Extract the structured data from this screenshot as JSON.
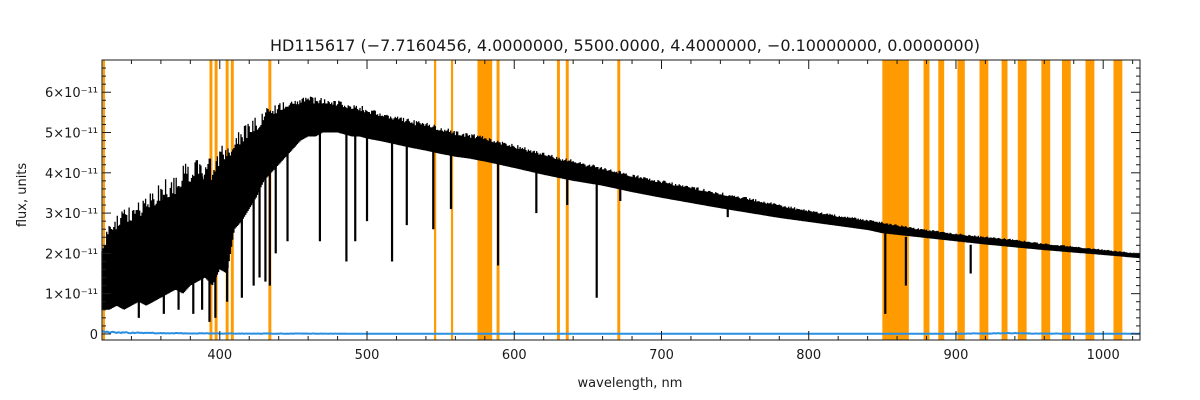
{
  "chart_data": {
    "type": "line",
    "title": "HD115617   (−7.7160456, 4.0000000, 5500.0000, 4.4000000, −0.10000000, 0.0000000)",
    "xlabel": "wavelength, nm",
    "ylabel": "flux, units",
    "xlim": [
      320,
      1025
    ],
    "ylim": [
      -1.5e-12,
      6.8e-11
    ],
    "x_ticks": [
      400,
      500,
      600,
      700,
      800,
      900,
      1000
    ],
    "x_tick_labels": [
      "400",
      "500",
      "600",
      "700",
      "800",
      "900",
      "1000"
    ],
    "y_ticks": [
      0,
      1e-11,
      2e-11,
      3e-11,
      4e-11,
      5e-11,
      6e-11
    ],
    "y_tick_labels": [
      "0",
      "1×10⁻¹¹",
      "2×10⁻¹¹",
      "3×10⁻¹¹",
      "4×10⁻¹¹",
      "5×10⁻¹¹",
      "6×10⁻¹¹"
    ],
    "grid": false,
    "colors": {
      "spectrum": "#000000",
      "error": "#2a8fe0",
      "mask": "#ff9a00",
      "axes": "#1a1a1a"
    },
    "series": [
      {
        "role": "flux",
        "x": [
          320,
          325,
          330,
          335,
          340,
          345,
          350,
          355,
          360,
          365,
          370,
          375,
          380,
          385,
          390,
          395,
          400,
          405,
          410,
          415,
          420,
          425,
          430,
          435,
          440,
          445,
          450,
          455,
          460,
          465,
          470,
          475,
          480,
          485,
          490,
          495,
          500,
          510,
          520,
          530,
          540,
          550,
          560,
          570,
          577,
          580,
          590,
          600,
          620,
          640,
          660,
          680,
          700,
          720,
          740,
          760,
          780,
          800,
          820,
          840,
          850,
          855,
          870,
          880,
          900,
          920,
          940,
          960,
          980,
          1000,
          1025
        ],
        "upper": [
          2.3e-11,
          2.8e-11,
          3e-11,
          3.1e-11,
          3.2e-11,
          3.3e-11,
          3.5e-11,
          3.6e-11,
          3.8e-11,
          3.9e-11,
          4e-11,
          4.2e-11,
          4.3e-11,
          4.4e-11,
          4.3e-11,
          4.4e-11,
          4.6e-11,
          4.9e-11,
          5e-11,
          5.1e-11,
          5.3e-11,
          5.4e-11,
          5.6e-11,
          5.7e-11,
          5.75e-11,
          5.8e-11,
          5.85e-11,
          5.88e-11,
          5.9e-11,
          5.88e-11,
          5.86e-11,
          5.84e-11,
          5.8e-11,
          5.75e-11,
          5.7e-11,
          5.68e-11,
          5.62e-11,
          5.52e-11,
          5.42e-11,
          5.33e-11,
          5.25e-11,
          5.15e-11,
          5.05e-11,
          4.98e-11,
          4.95e-11,
          4.9e-11,
          4.82e-11,
          4.72e-11,
          4.5e-11,
          4.32e-11,
          4.15e-11,
          3.98e-11,
          3.82e-11,
          3.68e-11,
          3.52e-11,
          3.38e-11,
          3.22e-11,
          3.08e-11,
          2.95e-11,
          2.85e-11,
          2.8e-11,
          2.75e-11,
          2.65e-11,
          2.6e-11,
          2.5e-11,
          2.42e-11,
          2.35e-11,
          2.25e-11,
          2.18e-11,
          2.1e-11,
          2e-11
        ],
        "lower": [
          6e-12,
          6e-12,
          7e-12,
          6e-12,
          7e-12,
          8e-12,
          7e-12,
          8e-12,
          9e-12,
          1e-11,
          1.1e-11,
          1e-11,
          1.2e-11,
          1.3e-11,
          1.4e-11,
          1.2e-11,
          1.6e-11,
          1.5e-11,
          2.6e-11,
          2.8e-11,
          3.1e-11,
          3.4e-11,
          3.8e-11,
          4e-11,
          4.2e-11,
          4.4e-11,
          4.6e-11,
          4.8e-11,
          4.9e-11,
          4.9e-11,
          5e-11,
          5e-11,
          5e-11,
          4.95e-11,
          4.9e-11,
          4.9e-11,
          4.85e-11,
          4.78e-11,
          4.7e-11,
          4.62e-11,
          4.55e-11,
          4.47e-11,
          4.4e-11,
          4.35e-11,
          4.3e-11,
          4.28e-11,
          4.2e-11,
          4.12e-11,
          3.95e-11,
          3.8e-11,
          3.68e-11,
          3.52e-11,
          3.38e-11,
          3.25e-11,
          3.12e-11,
          3e-11,
          2.88e-11,
          2.78e-11,
          2.68e-11,
          2.58e-11,
          2.5e-11,
          2.48e-11,
          2.42e-11,
          2.38e-11,
          2.3e-11,
          2.22e-11,
          2.15e-11,
          2.08e-11,
          2.02e-11,
          1.96e-11,
          1.88e-11
        ]
      },
      {
        "role": "absorption_lines",
        "x": [
          345,
          362,
          372,
          382,
          388,
          393,
          397,
          405,
          415,
          423,
          427,
          431,
          434,
          438,
          446,
          468,
          486,
          492,
          500,
          517,
          527,
          545,
          557,
          589,
          615,
          636,
          656,
          672,
          745,
          852,
          866,
          910
        ],
        "y": [
          4e-12,
          5e-12,
          6e-12,
          5e-12,
          6e-12,
          3e-12,
          4e-12,
          8e-12,
          9e-12,
          1.2e-11,
          1.4e-11,
          1.3e-11,
          1.2e-11,
          2e-11,
          2.3e-11,
          2.3e-11,
          1.8e-11,
          2.3e-11,
          2.8e-11,
          1.8e-11,
          2.7e-11,
          2.6e-11,
          3.1e-11,
          1.7e-11,
          3e-11,
          3.2e-11,
          9e-12,
          3.3e-11,
          2.9e-11,
          5e-12,
          1.2e-11,
          1.5e-11
        ]
      },
      {
        "role": "error",
        "x": [
          320,
          330,
          340,
          350,
          360,
          380,
          400,
          420,
          440,
          500,
          600,
          700,
          800,
          900,
          940,
          950,
          1000,
          1025
        ],
        "y": [
          5e-13,
          4e-13,
          3e-13,
          2.5e-13,
          2e-13,
          1.5e-13,
          1e-13,
          1e-13,
          1e-13,
          5e-14,
          5e-14,
          5e-14,
          5e-14,
          6e-14,
          2e-13,
          1e-13,
          6e-14,
          6e-14
        ]
      }
    ],
    "masked_regions": [
      [
        320.5,
        322
      ],
      [
        393,
        395
      ],
      [
        396.5,
        398.5
      ],
      [
        404,
        406
      ],
      [
        407.5,
        409.5
      ],
      [
        433,
        435
      ],
      [
        545.5,
        547
      ],
      [
        557,
        558.5
      ],
      [
        575,
        585
      ],
      [
        588,
        590
      ],
      [
        629,
        631
      ],
      [
        635,
        637
      ],
      [
        670,
        672
      ],
      [
        850,
        868
      ],
      [
        878,
        882
      ],
      [
        888,
        892
      ],
      [
        901,
        906
      ],
      [
        916,
        922
      ],
      [
        931,
        935
      ],
      [
        942,
        948
      ],
      [
        958,
        964
      ],
      [
        972,
        978
      ],
      [
        988,
        994
      ],
      [
        1007,
        1013
      ]
    ]
  }
}
